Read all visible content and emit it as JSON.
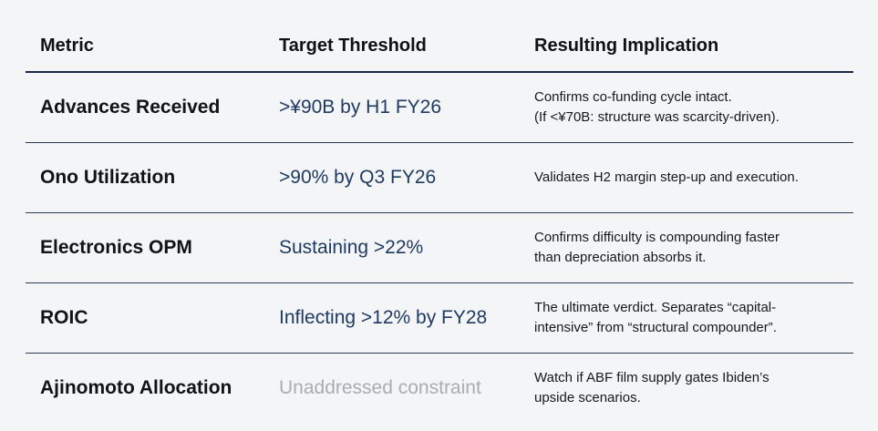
{
  "headers": {
    "metric": "Metric",
    "target": "Target Threshold",
    "implication": "Resulting Implication"
  },
  "rows": [
    {
      "metric": "Advances Received",
      "target": ">¥90B by H1 FY26",
      "implication_lines": [
        "Confirms co-funding cycle intact.",
        "(If <¥70B: structure was scarcity-driven)."
      ]
    },
    {
      "metric": "Ono Utilization",
      "target": ">90% by Q3 FY26",
      "implication_lines": [
        "Validates H2 margin step-up and execution."
      ]
    },
    {
      "metric": "Electronics OPM",
      "target": "Sustaining >22%",
      "implication_lines": [
        "Confirms difficulty is compounding faster",
        "than depreciation absorbs it."
      ]
    },
    {
      "metric": "ROIC",
      "target": "Inflecting >12% by FY28",
      "implication_lines": [
        "The ultimate verdict. Separates “capital-",
        "intensive” from “structural compounder”."
      ]
    },
    {
      "metric": "Ajinomoto Allocation",
      "target": "Unaddressed constraint",
      "target_muted": true,
      "implication_lines": [
        "Watch if ABF film supply gates Ibiden’s",
        "upside scenarios."
      ]
    }
  ],
  "colors": {
    "target_text": "#1e3a66",
    "muted_text": "#a9adb3",
    "rule": "#1a2a44"
  }
}
